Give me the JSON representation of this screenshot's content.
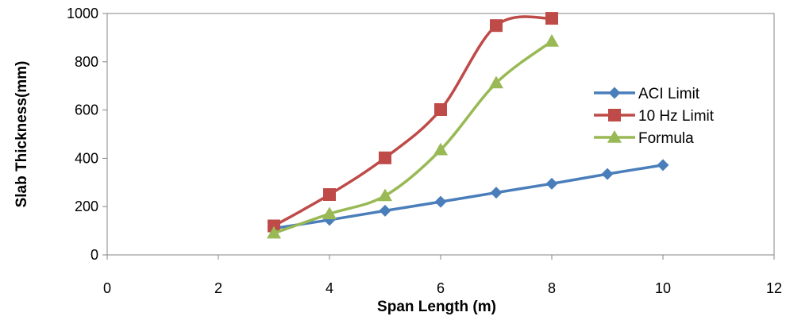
{
  "chart_data": {
    "type": "scatter",
    "title": "",
    "xlabel": "Span Length (m)",
    "ylabel": "Slab Thickness(mm)",
    "xlim": [
      0,
      12
    ],
    "ylim": [
      0,
      1000
    ],
    "xticks": [
      0,
      2,
      4,
      6,
      8,
      10,
      12
    ],
    "yticks": [
      0,
      200,
      400,
      600,
      800,
      1000
    ],
    "x_tick_labels": [
      "0",
      "2",
      "4",
      "6",
      "8",
      "10",
      "12"
    ],
    "y_tick_labels": [
      "0",
      "200",
      "400",
      "600",
      "800",
      "1000"
    ],
    "grid": false,
    "smooth_lines": true,
    "legend_position": "right",
    "series": [
      {
        "name": "ACI Limit",
        "marker": "diamond",
        "color": "#4a7ebb",
        "points": [
          [
            3,
            110
          ],
          [
            4,
            145
          ],
          [
            5,
            183
          ],
          [
            6,
            220
          ],
          [
            7,
            258
          ],
          [
            8,
            295
          ],
          [
            9,
            335
          ],
          [
            10,
            372
          ]
        ]
      },
      {
        "name": "10 Hz Limit",
        "marker": "square",
        "color": "#be4b48",
        "points": [
          [
            3,
            120
          ],
          [
            4,
            250
          ],
          [
            5,
            402
          ],
          [
            6,
            602
          ],
          [
            7,
            950
          ],
          [
            8,
            980
          ]
        ]
      },
      {
        "name": "Formula",
        "marker": "triangle",
        "color": "#98b954",
        "points": [
          [
            3,
            90
          ],
          [
            4,
            170
          ],
          [
            5,
            245
          ],
          [
            6,
            435
          ],
          [
            7,
            712
          ],
          [
            8,
            885
          ]
        ]
      }
    ]
  }
}
